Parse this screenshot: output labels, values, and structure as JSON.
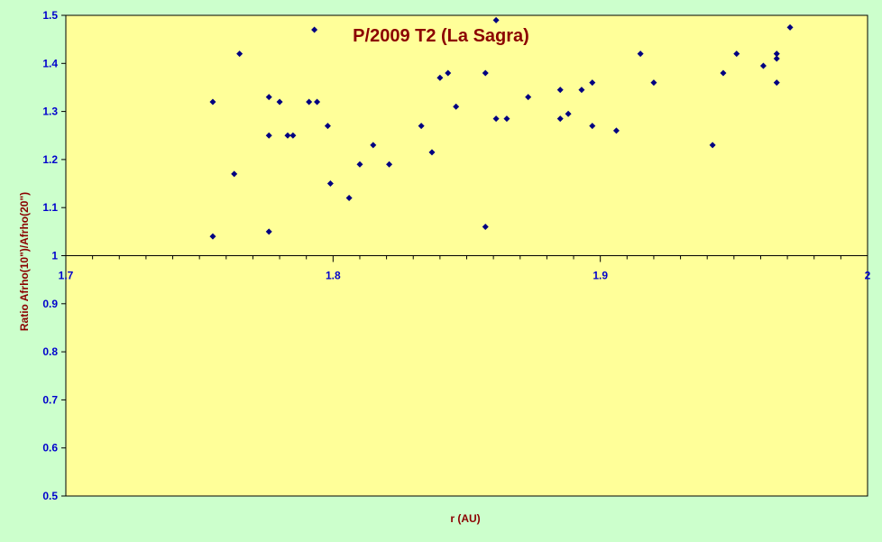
{
  "chart_data": {
    "type": "scatter",
    "title": "P/2009 T2 (La Sagra)",
    "xlabel": "r (AU)",
    "ylabel": "Ratio Afrho(10\")/Afrho(20\")",
    "xlim": [
      1.7,
      2.0
    ],
    "ylim": [
      0.5,
      1.5
    ],
    "x_axis_crosses_y": 1.0,
    "x_ticks": [
      "1.7",
      "1.8",
      "1.9",
      "2"
    ],
    "y_ticks": [
      "0.5",
      "0.6",
      "0.7",
      "0.8",
      "0.9",
      "1",
      "1.1",
      "1.2",
      "1.3",
      "1.4",
      "1.5"
    ],
    "grid": false,
    "legend": "none",
    "colors": {
      "plot_background": "#ffff99",
      "page_background": "#ccffcc",
      "marker": "#000080",
      "title": "#8b0000",
      "tick_labels": "#0000cc"
    },
    "series": [
      {
        "marker": "diamond",
        "points": [
          [
            1.755,
            1.32
          ],
          [
            1.755,
            1.04
          ],
          [
            1.763,
            1.17
          ],
          [
            1.765,
            1.42
          ],
          [
            1.776,
            1.33
          ],
          [
            1.776,
            1.25
          ],
          [
            1.776,
            1.05
          ],
          [
            1.78,
            1.32
          ],
          [
            1.783,
            1.25
          ],
          [
            1.785,
            1.25
          ],
          [
            1.791,
            1.32
          ],
          [
            1.793,
            1.47
          ],
          [
            1.794,
            1.32
          ],
          [
            1.798,
            1.27
          ],
          [
            1.799,
            1.15
          ],
          [
            1.806,
            1.12
          ],
          [
            1.81,
            1.19
          ],
          [
            1.815,
            1.23
          ],
          [
            1.821,
            1.19
          ],
          [
            1.833,
            1.27
          ],
          [
            1.837,
            1.215
          ],
          [
            1.84,
            1.37
          ],
          [
            1.843,
            1.38
          ],
          [
            1.846,
            1.31
          ],
          [
            1.857,
            1.38
          ],
          [
            1.857,
            1.06
          ],
          [
            1.861,
            1.49
          ],
          [
            1.861,
            1.285
          ],
          [
            1.865,
            1.285
          ],
          [
            1.873,
            1.33
          ],
          [
            1.885,
            1.345
          ],
          [
            1.885,
            1.285
          ],
          [
            1.888,
            1.295
          ],
          [
            1.893,
            1.345
          ],
          [
            1.897,
            1.36
          ],
          [
            1.897,
            1.27
          ],
          [
            1.906,
            1.26
          ],
          [
            1.915,
            1.42
          ],
          [
            1.92,
            1.36
          ],
          [
            1.942,
            1.23
          ],
          [
            1.946,
            1.38
          ],
          [
            1.951,
            1.42
          ],
          [
            1.961,
            1.395
          ],
          [
            1.966,
            1.42
          ],
          [
            1.966,
            1.41
          ],
          [
            1.966,
            1.36
          ],
          [
            1.971,
            1.475
          ]
        ]
      }
    ]
  }
}
